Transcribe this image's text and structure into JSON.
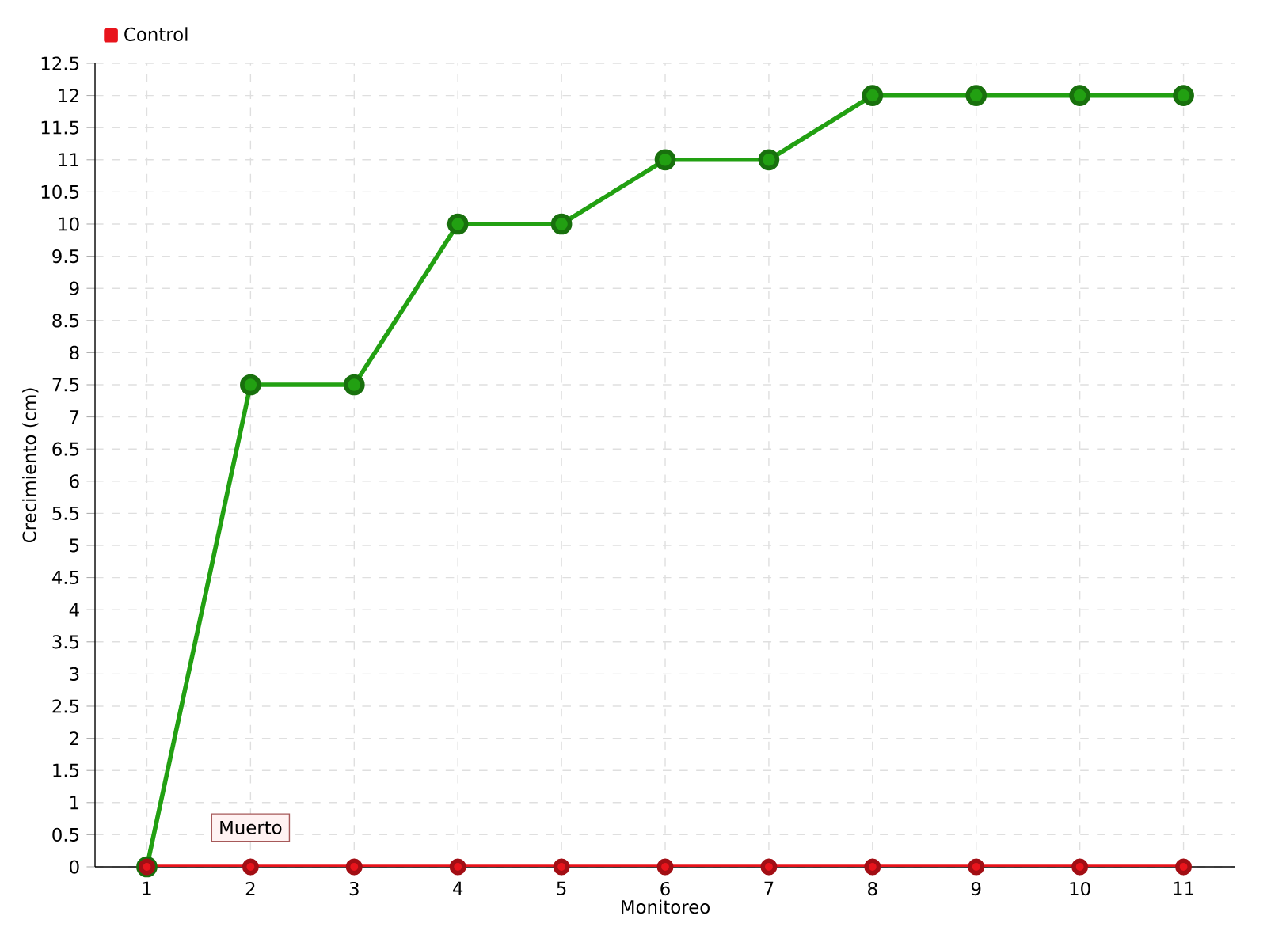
{
  "chart_data": {
    "type": "line",
    "xlabel": "Monitoreo",
    "ylabel": "Crecimiento (cm)",
    "categories": [
      "1",
      "2",
      "3",
      "4",
      "5",
      "6",
      "7",
      "8",
      "9",
      "10",
      "11"
    ],
    "series": [
      {
        "color": "#22a012",
        "values": [
          0,
          7.5,
          7.5,
          10,
          10,
          11,
          11,
          12,
          12,
          12,
          12
        ]
      },
      {
        "name": "Control",
        "color": "#e8141c",
        "values": [
          0,
          0,
          0,
          0,
          0,
          0,
          0,
          0,
          0,
          0,
          0
        ]
      }
    ],
    "ylim": [
      0,
      12.5
    ],
    "yticks": [
      0,
      0.5,
      1,
      1.5,
      2,
      2.5,
      3,
      3.5,
      4,
      4.5,
      5,
      5.5,
      6,
      6.5,
      7,
      7.5,
      8,
      8.5,
      9,
      9.5,
      10,
      10.5,
      11,
      11.5,
      12,
      12.5
    ],
    "grid": true,
    "legend": "top left",
    "marker": "circle",
    "line_style": "solid",
    "annotations": [
      {
        "text": "Muerto",
        "x": "2",
        "y": 0
      }
    ]
  }
}
